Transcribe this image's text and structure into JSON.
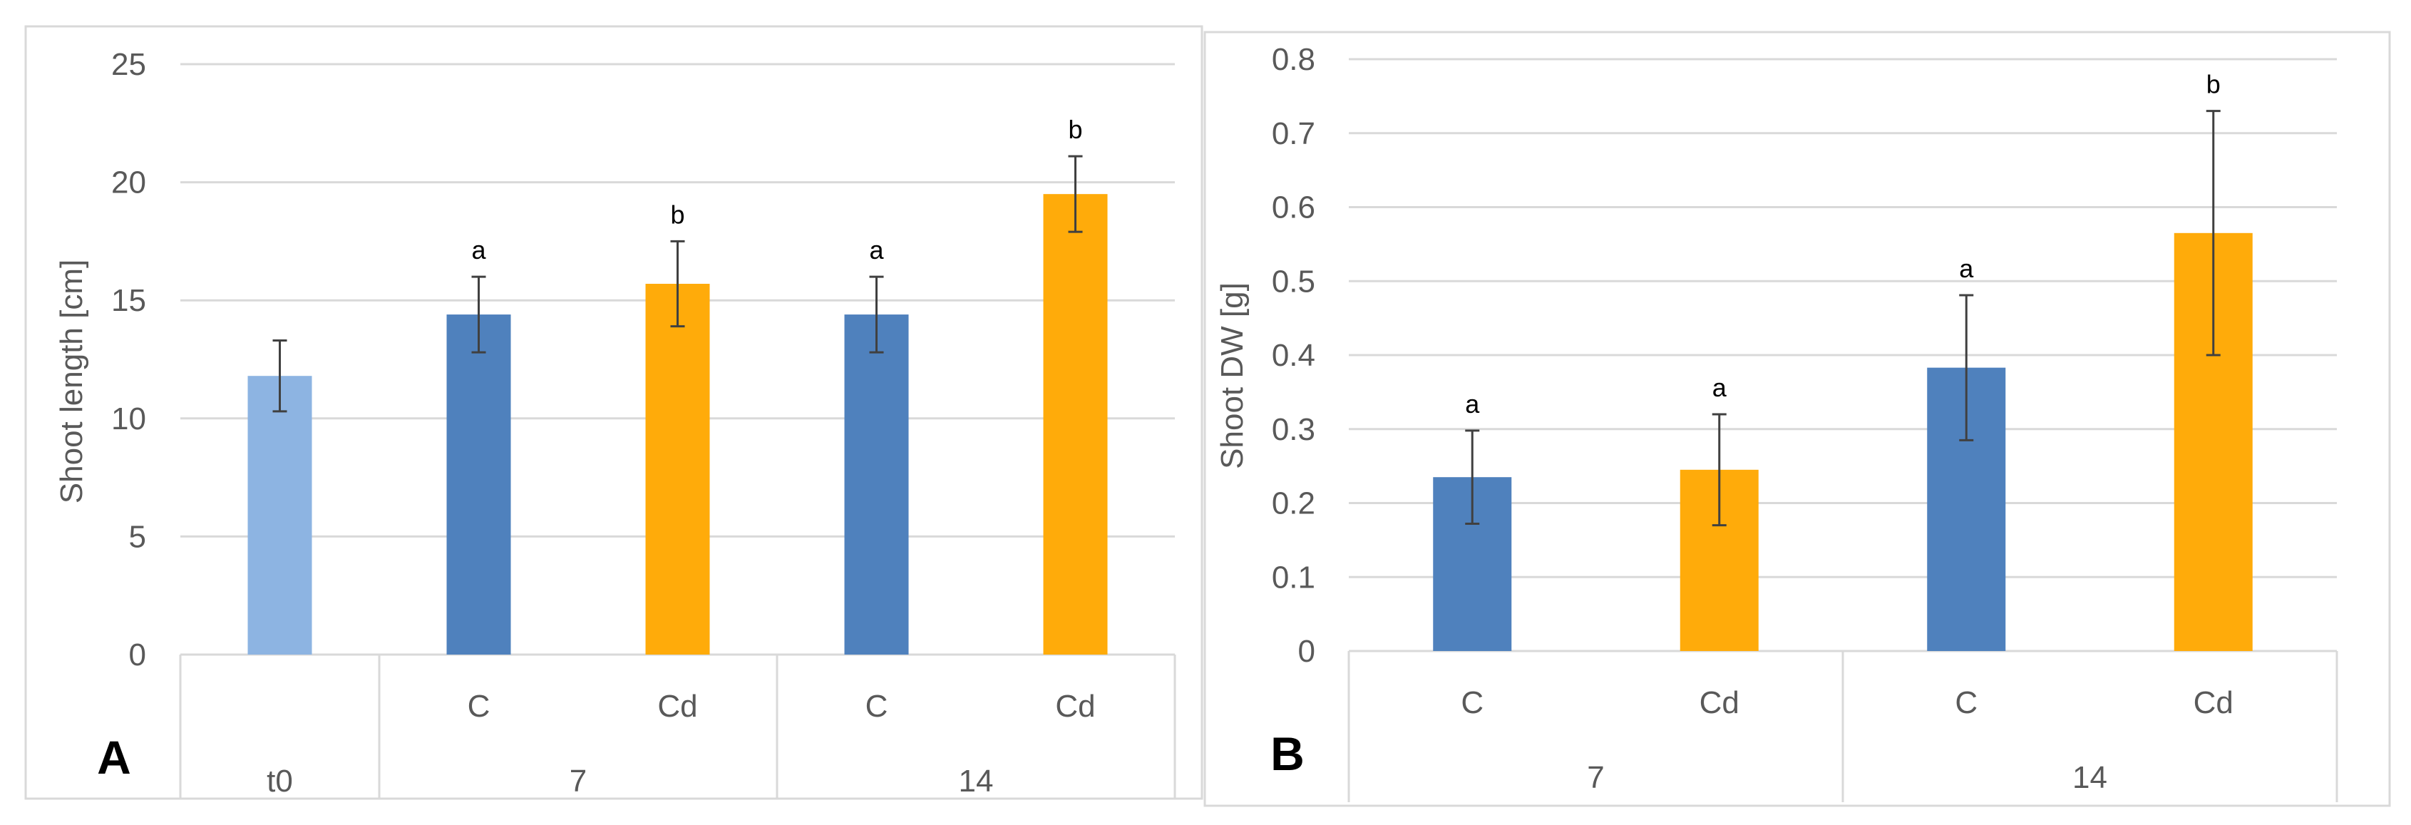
{
  "chart_data": [
    {
      "type": "bar",
      "panel_label": "A",
      "ylabel": "Shoot length [cm]",
      "xlabel": "",
      "ylim": [
        0,
        25
      ],
      "yticks": [
        "0",
        "5",
        "10",
        "15",
        "20",
        "25"
      ],
      "ytick_values": [
        0,
        5,
        10,
        15,
        20,
        25
      ],
      "grid": true,
      "legend": "none",
      "groups": [
        "t0",
        "7",
        "14"
      ],
      "bars": [
        {
          "group": "t0",
          "category": "",
          "value": 11.8,
          "error": 1.5,
          "letter": "",
          "color": "#8db4e2"
        },
        {
          "group": "7",
          "category": "C",
          "value": 14.4,
          "error": 1.6,
          "letter": "a",
          "color": "#4f81bd"
        },
        {
          "group": "7",
          "category": "Cd",
          "value": 15.7,
          "error": 1.8,
          "letter": "b",
          "color": "#ffab0a"
        },
        {
          "group": "14",
          "category": "C",
          "value": 14.4,
          "error": 1.6,
          "letter": "a",
          "color": "#4f81bd"
        },
        {
          "group": "14",
          "category": "Cd",
          "value": 19.5,
          "error": 1.6,
          "letter": "b",
          "color": "#ffab0a"
        }
      ]
    },
    {
      "type": "bar",
      "panel_label": "B",
      "ylabel": "Shoot DW [g]",
      "xlabel": "",
      "ylim": [
        0,
        0.8
      ],
      "yticks": [
        "0",
        "0.1",
        "0.2",
        "0.3",
        "0.4",
        "0.5",
        "0.6",
        "0.7",
        "0.8"
      ],
      "ytick_values": [
        0,
        0.1,
        0.2,
        0.3,
        0.4,
        0.5,
        0.6,
        0.7,
        0.8
      ],
      "grid": true,
      "legend": "none",
      "groups": [
        "7",
        "14"
      ],
      "bars": [
        {
          "group": "7",
          "category": "C",
          "value": 0.235,
          "error": 0.063,
          "letter": "a",
          "color": "#4f81bd"
        },
        {
          "group": "7",
          "category": "Cd",
          "value": 0.245,
          "error": 0.075,
          "letter": "a",
          "color": "#ffab0a"
        },
        {
          "group": "14",
          "category": "C",
          "value": 0.383,
          "error": 0.098,
          "letter": "a",
          "color": "#4f81bd"
        },
        {
          "group": "14",
          "category": "Cd",
          "value": 0.565,
          "error": 0.165,
          "letter": "b",
          "color": "#ffab0a"
        }
      ]
    }
  ]
}
